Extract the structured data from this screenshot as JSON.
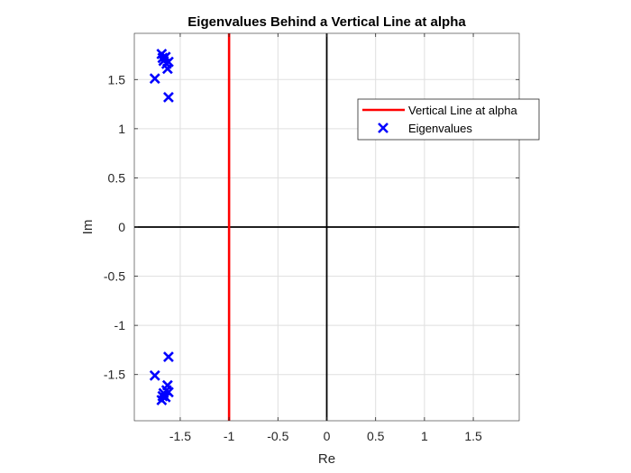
{
  "chart_data": {
    "type": "scatter",
    "title": "Eigenvalues Behind a Vertical Line at alpha",
    "xlabel": "Re",
    "ylabel": "Im",
    "xlim": [
      -1.97,
      1.97
    ],
    "ylim": [
      -1.97,
      1.97
    ],
    "xticks": [
      -1.5,
      -1,
      -0.5,
      0,
      0.5,
      1,
      1.5
    ],
    "xtick_labels": [
      "-1.5",
      "-1",
      "-0.5",
      "0",
      "0.5",
      "1",
      "1.5"
    ],
    "yticks": [
      -1.5,
      -1,
      -0.5,
      0,
      0.5,
      1,
      1.5
    ],
    "ytick_labels": [
      "-1.5",
      "-1",
      "-0.5",
      "0",
      "0.5",
      "1",
      "1.5"
    ],
    "grid": true,
    "legend_location": "upper right (inside axes)",
    "reference_axes": {
      "x_zero_line": true,
      "y_zero_line": true,
      "color": "#000000"
    },
    "series": [
      {
        "name": "Vertical Line at alpha",
        "kind": "line",
        "color": "#ff0000",
        "x": [
          -1,
          -1
        ],
        "y": [
          -1.97,
          1.97
        ]
      },
      {
        "name": "Eigenvalues",
        "kind": "scatter",
        "marker": "x",
        "color": "#0000ff",
        "points": [
          {
            "x": -1.76,
            "y": 1.51
          },
          {
            "x": -1.76,
            "y": -1.51
          },
          {
            "x": -1.69,
            "y": 1.76
          },
          {
            "x": -1.69,
            "y": -1.76
          },
          {
            "x": -1.68,
            "y": 1.72
          },
          {
            "x": -1.68,
            "y": -1.72
          },
          {
            "x": -1.67,
            "y": 1.69
          },
          {
            "x": -1.67,
            "y": -1.69
          },
          {
            "x": -1.65,
            "y": 1.73
          },
          {
            "x": -1.65,
            "y": -1.73
          },
          {
            "x": -1.64,
            "y": 1.66
          },
          {
            "x": -1.64,
            "y": -1.66
          },
          {
            "x": -1.63,
            "y": 1.61
          },
          {
            "x": -1.63,
            "y": -1.61
          },
          {
            "x": -1.62,
            "y": 1.68
          },
          {
            "x": -1.62,
            "y": -1.68
          },
          {
            "x": -1.62,
            "y": 1.32
          },
          {
            "x": -1.62,
            "y": -1.32
          }
        ]
      }
    ]
  }
}
